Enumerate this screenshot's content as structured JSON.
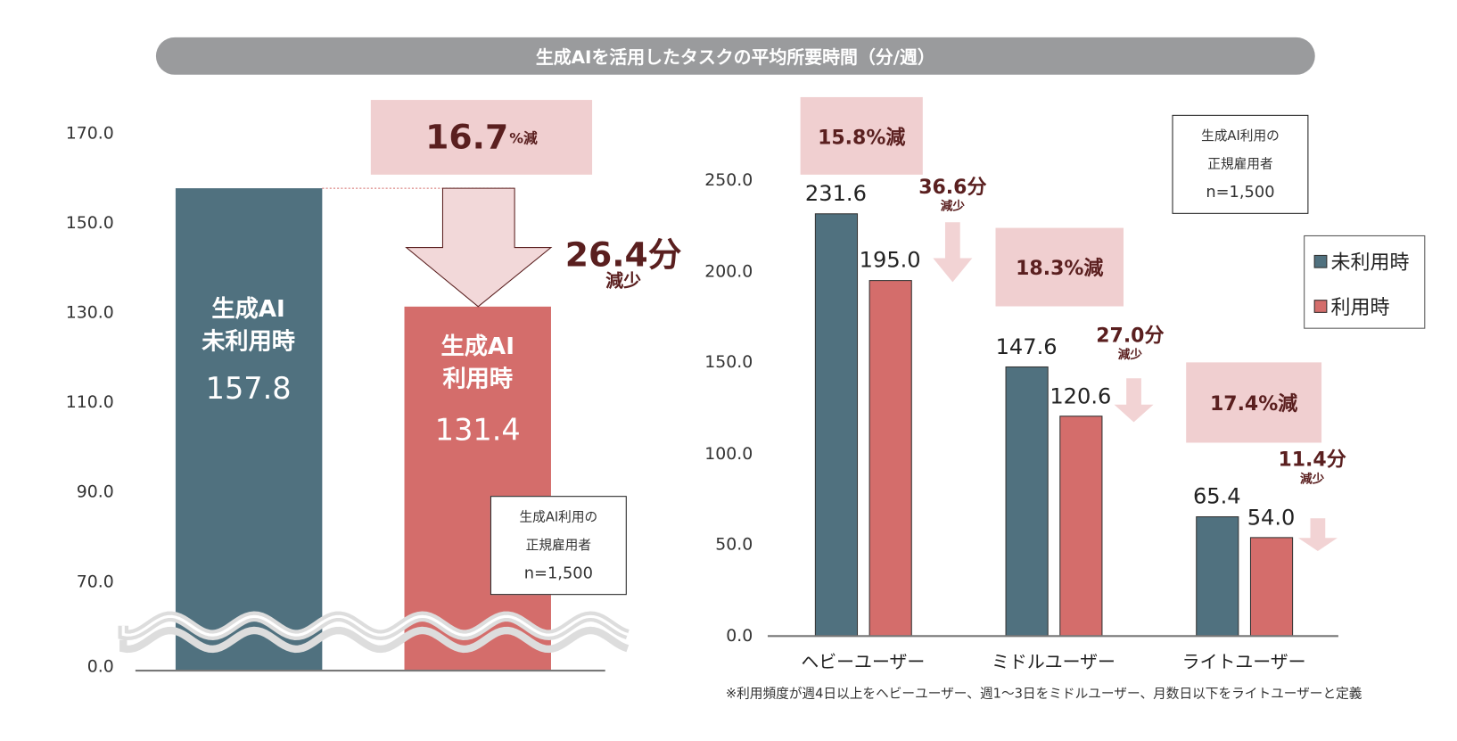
{
  "title": "生成AIを活用したタスクの平均所要時間（分/週）",
  "colors": {
    "not_using": "#50717f",
    "using": "#d46d6b",
    "highlight_box": "#f0cfd0",
    "highlight_text": "#5a1f1f",
    "title_bar": "#9a9b9d"
  },
  "chart_data": [
    {
      "type": "bar",
      "title": "",
      "yticks": [
        "0.0",
        "70.0",
        "90.0",
        "110.0",
        "130.0",
        "150.0",
        "170.0"
      ],
      "ylim": [
        0,
        170
      ],
      "axis_break": [
        0,
        70
      ],
      "grid": false,
      "bars": [
        {
          "label_line1": "生成AI",
          "label_line2": "未利用時",
          "value": 157.8,
          "value_label": "157.8",
          "color": "#50717f"
        },
        {
          "label_line1": "生成AI",
          "label_line2": "利用時",
          "value": 131.4,
          "value_label": "131.4",
          "color": "#d46d6b"
        }
      ],
      "annotations": {
        "percent": "16.7",
        "percent_suffix": "%減",
        "minutes": "26.4分",
        "minutes_suffix": "減少"
      },
      "note": {
        "line1": "生成AI利用の",
        "line2": "正規雇用者",
        "line3": "n=1,500"
      }
    },
    {
      "type": "bar",
      "title": "",
      "yticks": [
        "0.0",
        "50.0",
        "100.0",
        "150.0",
        "200.0",
        "250.0"
      ],
      "ylim": [
        0,
        250
      ],
      "grid": false,
      "legend_position": "right",
      "categories": [
        "ヘビーユーザー",
        "ミドルユーザー",
        "ライトユーザー"
      ],
      "series": [
        {
          "name": "未利用時",
          "values": [
            231.6,
            147.6,
            65.4
          ],
          "labels": [
            "231.6",
            "147.6",
            "65.4"
          ]
        },
        {
          "name": "利用時",
          "values": [
            195.0,
            120.6,
            54.0
          ],
          "labels": [
            "195.0",
            "120.6",
            "54.0"
          ]
        }
      ],
      "annotations": [
        {
          "percent": "15.8%減",
          "minutes": "36.6分",
          "suffix": "減少"
        },
        {
          "percent": "18.3%減",
          "minutes": "27.0分",
          "suffix": "減少"
        },
        {
          "percent": "17.4%減",
          "minutes": "11.4分",
          "suffix": "減少"
        }
      ],
      "note": {
        "line1": "生成AI利用の",
        "line2": "正規雇用者",
        "line3": "n=1,500"
      },
      "footnote": "※利用頻度が週4日以上をヘビーユーザー、週1～3日をミドルユーザー、月数日以下をライトユーザーと定義"
    }
  ]
}
